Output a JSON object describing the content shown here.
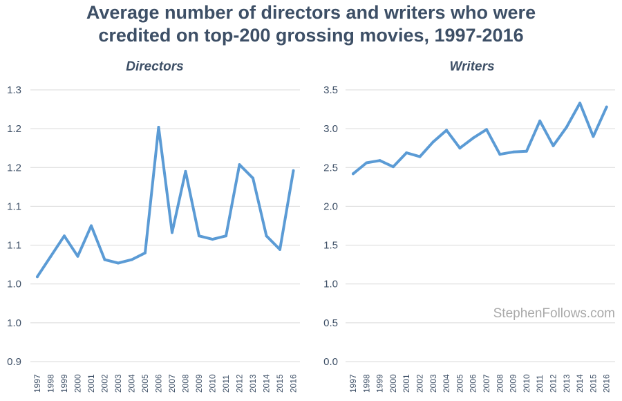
{
  "title_lines": [
    "Average number of directors and writers who were",
    "credited on top-200 grossing movies, 1997-2016"
  ],
  "watermark": "StephenFollows.com",
  "colors": {
    "title": "#3d4f66",
    "line": "#5b9bd5",
    "grid": "#d9d9d9",
    "watermark": "#a9a9a9"
  },
  "chart_data": [
    {
      "type": "line",
      "title": "Directors",
      "xlabel": "",
      "ylabel": "",
      "ylim": [
        0.9,
        1.3
      ],
      "yticks": [
        "0.9",
        "1.0",
        "1.0",
        "1.1",
        "1.1",
        "1.2",
        "1.2",
        "1.3"
      ],
      "categories": [
        "1997",
        "1998",
        "1999",
        "2000",
        "2001",
        "2002",
        "2003",
        "2004",
        "2005",
        "2006",
        "2007",
        "2008",
        "2009",
        "2010",
        "2011",
        "2012",
        "2013",
        "2014",
        "2015",
        "2016"
      ],
      "values": [
        1.025,
        1.055,
        1.085,
        1.055,
        1.1,
        1.05,
        1.045,
        1.05,
        1.06,
        1.245,
        1.09,
        1.18,
        1.085,
        1.08,
        1.085,
        1.19,
        1.17,
        1.085,
        1.065,
        1.181
      ],
      "grid": true,
      "legend": "none"
    },
    {
      "type": "line",
      "title": "Writers",
      "xlabel": "",
      "ylabel": "",
      "ylim": [
        0.0,
        3.5
      ],
      "yticks": [
        "0.0",
        "0.5",
        "1.0",
        "1.5",
        "2.0",
        "2.5",
        "3.0",
        "3.5"
      ],
      "categories": [
        "1997",
        "1998",
        "1999",
        "2000",
        "2001",
        "2002",
        "2003",
        "2004",
        "2005",
        "2006",
        "2007",
        "2008",
        "2009",
        "2010",
        "2011",
        "2012",
        "2013",
        "2014",
        "2015",
        "2016"
      ],
      "values": [
        2.42,
        2.56,
        2.59,
        2.51,
        2.69,
        2.64,
        2.83,
        2.98,
        2.75,
        2.88,
        2.99,
        2.67,
        2.7,
        2.71,
        3.1,
        2.78,
        3.02,
        3.33,
        2.9,
        3.28
      ],
      "grid": true,
      "legend": "none"
    }
  ]
}
